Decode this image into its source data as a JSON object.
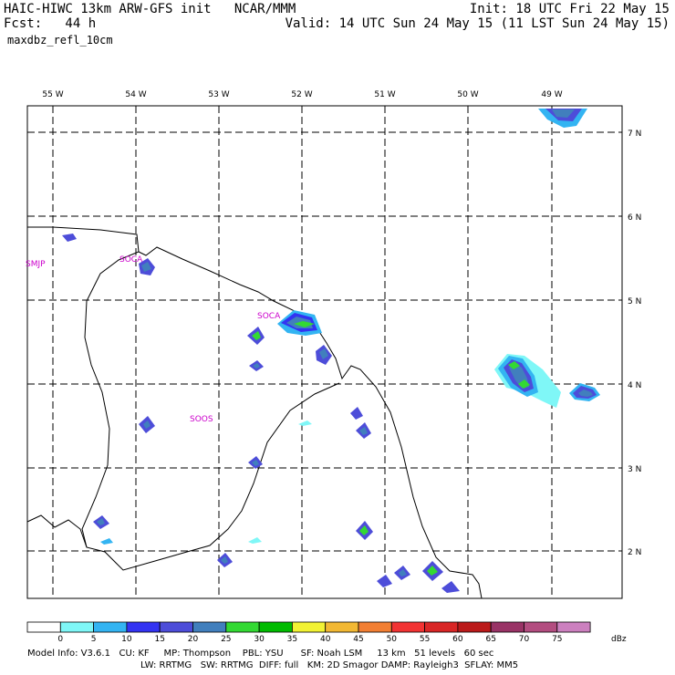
{
  "header": {
    "line1_left": "HAIC-HIWC 13km ARW-GFS init   NCAR/MMM",
    "line1_right": "Init: 18 UTC Fri 22 May 15",
    "line2_left": "Fcst:   44 h",
    "line2_right": "Valid: 14 UTC Sun 24 May 15 (11 LST Sun 24 May 15)",
    "line3": "maxdbz_refl_10cm"
  },
  "map": {
    "lon_labels": [
      "55 W",
      "54 W",
      "53 W",
      "52 W",
      "51 W",
      "50 W",
      "49 W"
    ],
    "lat_labels": [
      "7 N",
      "6 N",
      "5 N",
      "4 N",
      "3 N",
      "2 N"
    ],
    "stations": [
      "SMJP",
      "SOCA",
      "SOCA",
      "SOOS"
    ]
  },
  "legend": {
    "ticks": [
      "0",
      "5",
      "10",
      "15",
      "20",
      "25",
      "30",
      "35",
      "40",
      "45",
      "50",
      "55",
      "60",
      "65",
      "70",
      "75"
    ],
    "unit": "dBz",
    "colors": [
      "#ffffff",
      "#7ff7f7",
      "#33b4f2",
      "#3333f2",
      "#4d4dd9",
      "#417fbd",
      "#33d933",
      "#00bb00",
      "#f2f233",
      "#f2b833",
      "#f27f33",
      "#f23333",
      "#d92626",
      "#bb1a1a",
      "#993366",
      "#b34d80",
      "#cc80bf"
    ]
  },
  "footer": {
    "line1": "Model Info: V3.6.1   CU: KF     MP: Thompson    PBL: YSU      SF: Noah LSM     13 km   51 levels   60 sec",
    "line2": "LW: RRTMG   SW: RRTMG  DIFF: full   KM: 2D Smagor DAMP: Rayleigh3  SFLAY: MM5"
  }
}
